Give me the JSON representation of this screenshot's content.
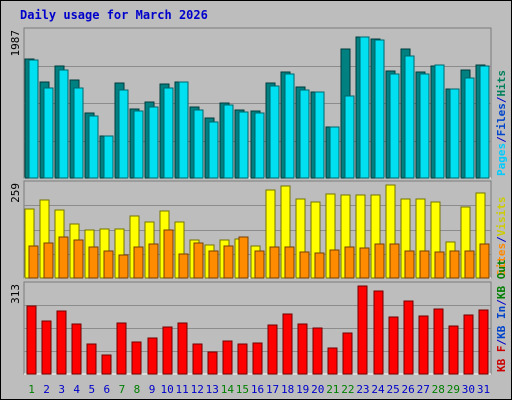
{
  "title": "Daily usage for March 2026",
  "chart_data": {
    "type": "bar",
    "title": "Daily usage for March 2026",
    "days": [
      "1",
      "2",
      "3",
      "4",
      "5",
      "6",
      "7",
      "8",
      "9",
      "10",
      "11",
      "12",
      "13",
      "14",
      "15",
      "16",
      "17",
      "18",
      "19",
      "20",
      "21",
      "22",
      "23",
      "24",
      "25",
      "26",
      "27",
      "28",
      "29",
      "30",
      "31"
    ],
    "weekend_days": [
      "1",
      "7",
      "8",
      "14",
      "15",
      "21",
      "22",
      "28",
      "29"
    ],
    "panels": [
      {
        "name": "hits",
        "ytick_label": "1987",
        "ymax": 1987,
        "legend": [
          {
            "text": "Hits",
            "color": "#00805c"
          },
          {
            "text": "/",
            "color": "#0000cc"
          },
          {
            "text": "Files",
            "color": "#0044cc"
          },
          {
            "text": "/",
            "color": "#0000cc"
          },
          {
            "text": "Pages",
            "color": "#00ccff"
          }
        ],
        "series": [
          {
            "name": "Hits",
            "color": "#008080",
            "values": [
              1620,
              1300,
              1520,
              1330,
              880,
              570,
              1290,
              940,
              1030,
              1280,
              1300,
              960,
              810,
              1020,
              920,
              910,
              1290,
              1440,
              1240,
              1170,
              690,
              1760,
              1920,
              1890,
              1460,
              1750,
              1440,
              1530,
              1210,
              1470,
              1540
            ]
          },
          {
            "name": "Files",
            "color": "#00e0f0",
            "values": [
              1600,
              1220,
              1470,
              1230,
              850,
              570,
              1200,
              910,
              970,
              1220,
              1300,
              920,
              760,
              990,
              900,
              880,
              1250,
              1420,
              1200,
              1170,
              690,
              1110,
              1920,
              1880,
              1410,
              1660,
              1410,
              1540,
              1210,
              1360,
              1530
            ]
          }
        ]
      },
      {
        "name": "visits",
        "ytick_label": "259",
        "ymax": 259,
        "legend": [
          {
            "text": "Visits",
            "color": "#cccc00"
          },
          {
            "text": "/",
            "color": "#0000cc"
          },
          {
            "text": "Sites",
            "color": "#ff8800"
          }
        ],
        "series": [
          {
            "name": "Visits",
            "color": "#ffff00",
            "values": [
              193,
              216,
              190,
              149,
              133,
              136,
              137,
              173,
              157,
              187,
              155,
              105,
              92,
              106,
              110,
              89,
              245,
              257,
              220,
              211,
              233,
              232,
              232,
              231,
              258,
              220,
              220,
              213,
              100,
              198,
              237
            ]
          },
          {
            "name": "Sites",
            "color": "#ff8c00",
            "values": [
              89,
              98,
              115,
              106,
              86,
              76,
              64,
              86,
              95,
              134,
              66,
              97,
              76,
              90,
              115,
              76,
              86,
              86,
              72,
              70,
              79,
              86,
              83,
              96,
              95,
              76,
              76,
              72,
              76,
              76,
              95
            ]
          }
        ]
      },
      {
        "name": "kbytes",
        "ytick_label": "313",
        "ymax": 313,
        "legend": [
          {
            "text": "KB Out",
            "color": "#008000"
          },
          {
            "text": "/",
            "color": "#0000cc"
          },
          {
            "text": "KB In",
            "color": "#0044cc"
          },
          {
            "text": "/",
            "color": "#0000cc"
          },
          {
            "text": "KB F",
            "color": "#cc0000"
          }
        ],
        "series": [
          {
            "name": "KB F",
            "color": "#ff0000",
            "values": [
              242,
              188,
              225,
              179,
              105,
              68,
              182,
              113,
              127,
              167,
              181,
              108,
              78,
              116,
              107,
              109,
              174,
              212,
              177,
              165,
              91,
              146,
              313,
              295,
              202,
              258,
              207,
              230,
              172,
              211,
              227
            ]
          }
        ]
      }
    ]
  }
}
